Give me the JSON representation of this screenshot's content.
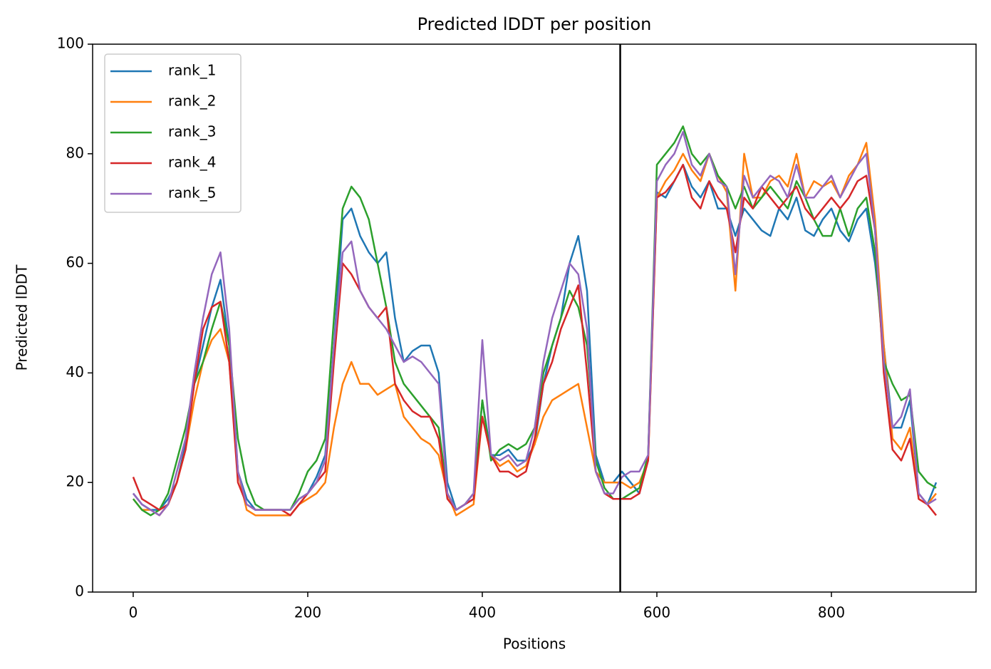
{
  "chart_data": {
    "type": "line",
    "title": "Predicted lDDT per position",
    "xlabel": "Positions",
    "ylabel": "Predicted lDDT",
    "x": [
      0,
      10,
      20,
      30,
      40,
      50,
      60,
      70,
      80,
      90,
      100,
      110,
      120,
      130,
      140,
      150,
      160,
      170,
      180,
      190,
      200,
      210,
      220,
      230,
      240,
      250,
      260,
      270,
      280,
      290,
      300,
      310,
      320,
      330,
      340,
      350,
      360,
      370,
      380,
      390,
      400,
      410,
      420,
      430,
      440,
      450,
      460,
      470,
      480,
      490,
      500,
      510,
      520,
      530,
      540,
      550,
      560,
      570,
      580,
      590,
      600,
      610,
      620,
      630,
      640,
      650,
      660,
      670,
      680,
      690,
      700,
      710,
      720,
      730,
      740,
      750,
      760,
      770,
      780,
      790,
      800,
      810,
      820,
      830,
      840,
      850,
      860,
      870,
      880,
      890,
      900,
      910,
      920
    ],
    "series": [
      {
        "name": "rank_1",
        "color": "#1f77b4",
        "values": [
          18,
          16,
          15,
          15,
          17,
          20,
          27,
          38,
          45,
          52,
          57,
          45,
          22,
          17,
          15,
          15,
          15,
          15,
          15,
          17,
          18,
          21,
          25,
          45,
          68,
          70,
          65,
          62,
          60,
          62,
          50,
          42,
          44,
          45,
          45,
          40,
          20,
          15,
          16,
          17,
          35,
          25,
          25,
          26,
          24,
          24,
          27,
          38,
          45,
          50,
          60,
          65,
          55,
          25,
          20,
          20,
          22,
          20,
          18,
          25,
          73,
          72,
          75,
          78,
          74,
          72,
          75,
          70,
          70,
          65,
          70,
          68,
          66,
          65,
          70,
          68,
          72,
          66,
          65,
          68,
          70,
          66,
          64,
          68,
          70,
          60,
          45,
          30,
          30,
          35,
          18,
          16,
          20
        ]
      },
      {
        "name": "rank_2",
        "color": "#ff7f0e",
        "values": [
          17,
          15,
          15,
          14,
          16,
          20,
          26,
          35,
          42,
          46,
          48,
          42,
          22,
          15,
          14,
          14,
          14,
          14,
          14,
          16,
          17,
          18,
          20,
          30,
          38,
          42,
          38,
          38,
          36,
          37,
          38,
          32,
          30,
          28,
          27,
          25,
          18,
          14,
          15,
          16,
          32,
          25,
          23,
          24,
          22,
          23,
          27,
          32,
          35,
          36,
          37,
          38,
          30,
          22,
          20,
          20,
          20,
          19,
          20,
          24,
          72,
          75,
          77,
          80,
          77,
          75,
          80,
          76,
          73,
          55,
          80,
          72,
          72,
          75,
          76,
          74,
          80,
          72,
          75,
          74,
          75,
          72,
          76,
          78,
          82,
          68,
          45,
          28,
          26,
          30,
          17,
          16,
          18
        ]
      },
      {
        "name": "rank_3",
        "color": "#2ca02c",
        "values": [
          17,
          15,
          14,
          15,
          18,
          24,
          30,
          38,
          42,
          48,
          53,
          45,
          28,
          20,
          16,
          15,
          15,
          15,
          15,
          18,
          22,
          24,
          28,
          50,
          70,
          74,
          72,
          68,
          60,
          52,
          42,
          38,
          36,
          34,
          32,
          30,
          18,
          15,
          16,
          18,
          35,
          24,
          26,
          27,
          26,
          27,
          30,
          40,
          45,
          50,
          55,
          52,
          45,
          24,
          19,
          17,
          17,
          18,
          19,
          25,
          78,
          80,
          82,
          85,
          80,
          78,
          80,
          76,
          74,
          70,
          74,
          70,
          72,
          74,
          72,
          70,
          75,
          72,
          68,
          65,
          65,
          70,
          65,
          70,
          72,
          62,
          42,
          38,
          35,
          36,
          22,
          20,
          19
        ]
      },
      {
        "name": "rank_4",
        "color": "#d62728",
        "values": [
          21,
          17,
          16,
          15,
          16,
          20,
          26,
          38,
          48,
          52,
          53,
          42,
          20,
          16,
          15,
          15,
          15,
          15,
          14,
          16,
          18,
          20,
          22,
          42,
          60,
          58,
          55,
          52,
          50,
          52,
          38,
          35,
          33,
          32,
          32,
          28,
          17,
          15,
          16,
          17,
          32,
          25,
          22,
          22,
          21,
          22,
          28,
          38,
          42,
          48,
          52,
          56,
          40,
          22,
          18,
          17,
          17,
          17,
          18,
          24,
          72,
          73,
          75,
          78,
          72,
          70,
          75,
          72,
          70,
          62,
          72,
          70,
          74,
          72,
          70,
          72,
          74,
          70,
          68,
          70,
          72,
          70,
          72,
          75,
          76,
          66,
          40,
          26,
          24,
          28,
          17,
          16,
          14
        ]
      },
      {
        "name": "rank_5",
        "color": "#9467bd",
        "values": [
          18,
          16,
          15,
          14,
          16,
          22,
          28,
          40,
          50,
          58,
          62,
          48,
          22,
          16,
          15,
          15,
          15,
          15,
          15,
          17,
          18,
          20,
          24,
          45,
          62,
          64,
          55,
          52,
          50,
          48,
          45,
          42,
          43,
          42,
          40,
          38,
          18,
          15,
          16,
          18,
          46,
          25,
          24,
          25,
          23,
          24,
          30,
          42,
          50,
          55,
          60,
          58,
          48,
          22,
          18,
          18,
          21,
          22,
          22,
          25,
          75,
          78,
          80,
          84,
          78,
          76,
          80,
          75,
          74,
          58,
          76,
          72,
          74,
          76,
          75,
          72,
          78,
          72,
          72,
          74,
          76,
          72,
          75,
          78,
          80,
          66,
          42,
          30,
          32,
          37,
          18,
          16,
          17
        ]
      }
    ],
    "vline": 558,
    "xlim": [
      -46.5,
      965.7
    ],
    "xticks": [
      0,
      200,
      400,
      600,
      800
    ],
    "ylim": [
      0,
      100
    ],
    "yticks": [
      0,
      20,
      40,
      60,
      80,
      100
    ],
    "legend": "upper left",
    "grid": false
  }
}
